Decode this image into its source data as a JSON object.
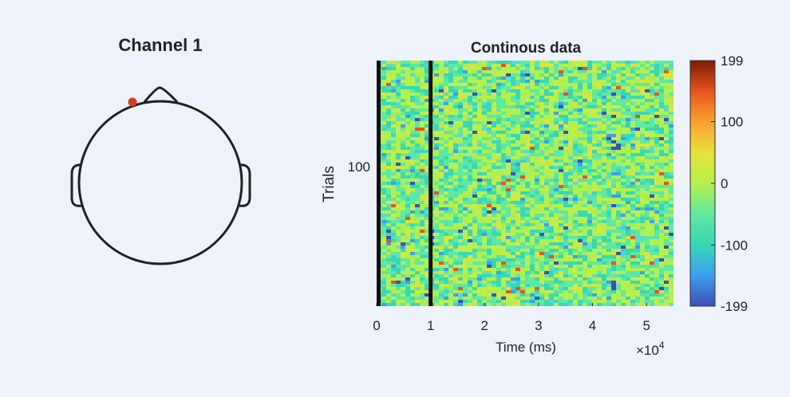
{
  "topoplot": {
    "title": "Channel 1",
    "channel_color": "#d9411e"
  },
  "chart_data": {
    "type": "heatmap",
    "title": "Continous data",
    "xlabel": "Time (ms)",
    "ylabel": "Trials",
    "x_exponent_label": "×10",
    "x_exponent_power": "4",
    "xlim": [
      0,
      5.5
    ],
    "x_ticks": [
      0,
      1,
      2,
      3,
      4,
      5
    ],
    "x_tick_labels": [
      "0",
      "1",
      "2",
      "3",
      "4",
      "5"
    ],
    "y_ticks": [
      100
    ],
    "y_tick_labels": [
      "100"
    ],
    "event_markers_x": [
      0,
      1
    ],
    "colorbar": {
      "clim": [
        -199,
        199
      ],
      "tick_values": [
        199,
        100,
        0,
        -100,
        -199
      ],
      "tick_labels": [
        "199",
        "100",
        "0",
        "-100",
        "-199"
      ],
      "colormap": [
        "#3e4fb5",
        "#3b9ff0",
        "#37d8b5",
        "#5fe8a0",
        "#b6f04c",
        "#e6e13a",
        "#f9a22f",
        "#e8541c",
        "#7a1c06"
      ]
    }
  }
}
